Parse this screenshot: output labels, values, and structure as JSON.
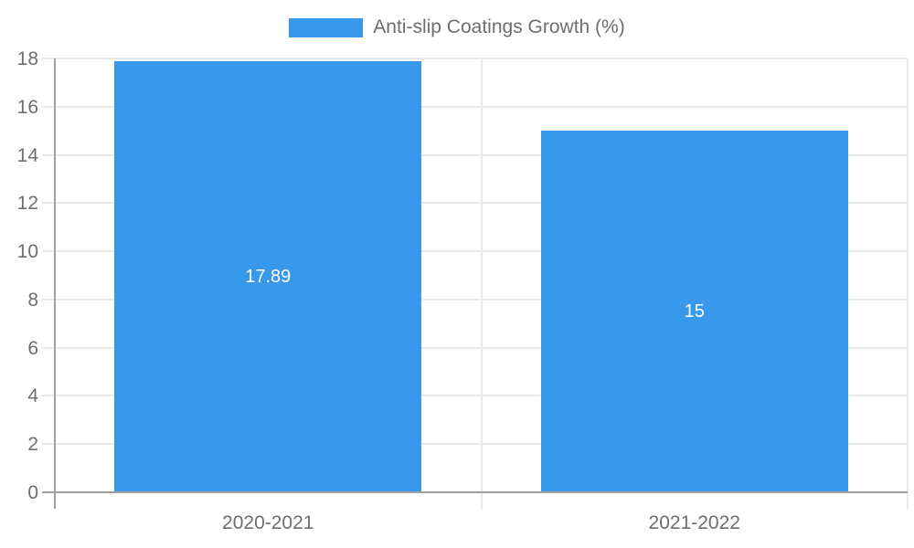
{
  "chart_data": {
    "type": "bar",
    "title": "",
    "categories": [
      "2020-2021",
      "2021-2022"
    ],
    "series": [
      {
        "name": "Anti-slip Coatings Growth (%)",
        "values": [
          17.89,
          15
        ],
        "value_labels": [
          "17.89",
          "15"
        ]
      }
    ],
    "xlabel": "",
    "ylabel": "",
    "ylim": [
      0,
      18
    ],
    "yticks": [
      0,
      2,
      4,
      6,
      8,
      10,
      12,
      14,
      16,
      18
    ],
    "ytick_labels": [
      "0",
      "2",
      "4",
      "6",
      "8",
      "10",
      "12",
      "14",
      "16",
      "18"
    ],
    "grid": true,
    "legend_position": "top",
    "colors": {
      "bar": "#3898EC",
      "value_label": "#ffffff",
      "axis_text": "#6e6e6e",
      "gridline": "#e9e9e9",
      "axis_line": "#a0a0a0",
      "background": "#ffffff"
    }
  },
  "legend": {
    "label": "Anti-slip Coatings Growth (%)"
  }
}
